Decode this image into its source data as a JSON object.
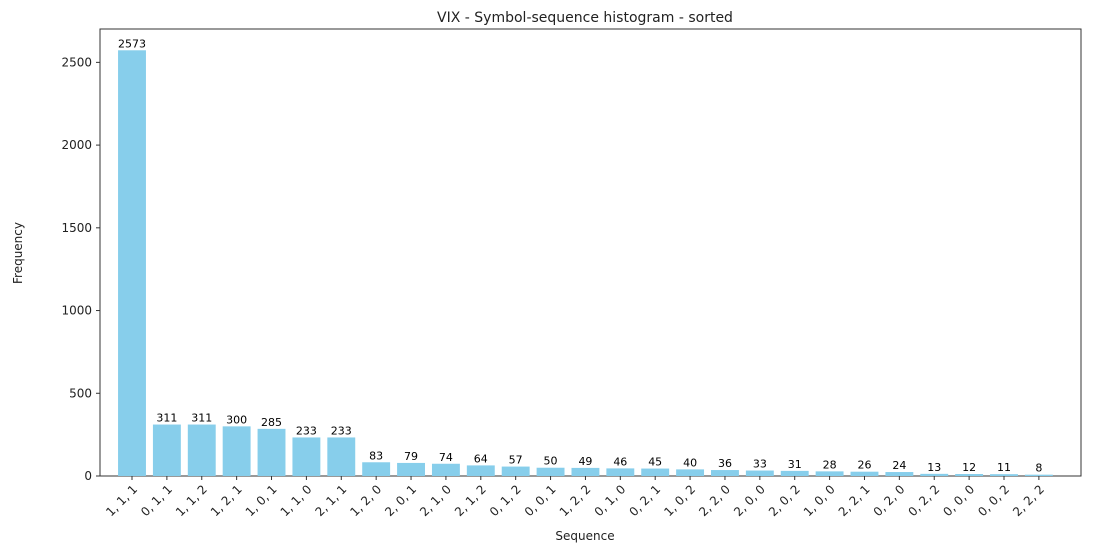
{
  "chart_data": {
    "type": "bar",
    "title": "VIX - Symbol-sequence histogram - sorted",
    "x_label": "Sequence",
    "y_label": "Frequency",
    "categories": [
      "1, 1, 1",
      "0, 1, 1",
      "1, 1, 2",
      "1, 2, 1",
      "1, 0, 1",
      "1, 1, 0",
      "2, 1, 1",
      "1, 2, 0",
      "2, 0, 1",
      "2, 1, 0",
      "2, 1, 2",
      "0, 1, 2",
      "0, 0, 1",
      "1, 2, 2",
      "0, 1, 0",
      "0, 2, 1",
      "1, 0, 2",
      "2, 2, 0",
      "2, 0, 0",
      "2, 0, 2",
      "1, 0, 0",
      "2, 2, 1",
      "0, 2, 0",
      "0, 2, 2",
      "0, 0, 0",
      "0, 0, 2",
      "2, 2, 2"
    ],
    "values": [
      2573,
      311,
      311,
      300,
      285,
      233,
      233,
      83,
      79,
      74,
      64,
      57,
      50,
      49,
      46,
      45,
      40,
      36,
      33,
      31,
      28,
      26,
      24,
      13,
      12,
      11,
      8
    ],
    "color": "#87ceeb",
    "ylim": [
      0,
      2701.65
    ],
    "yticks": [
      0,
      500,
      1000,
      1500,
      2000,
      2500
    ],
    "grid": false
  }
}
